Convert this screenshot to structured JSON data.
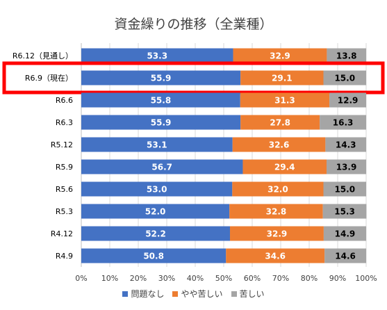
{
  "chart_data": {
    "type": "bar",
    "orientation": "horizontal",
    "stacked": true,
    "title": "資金繰りの推移（全業種）",
    "categories": [
      "R6.12（見通し）",
      "R6.9（現在）",
      "R6.6",
      "R6.3",
      "R5.12",
      "R5.9",
      "R5.6",
      "R5.3",
      "R4.12",
      "R4.9"
    ],
    "series": [
      {
        "name": "問題なし",
        "color": "#4472C4",
        "values": [
          53.3,
          55.9,
          55.8,
          55.9,
          53.1,
          56.7,
          53.0,
          52.0,
          52.2,
          50.8
        ]
      },
      {
        "name": "やや苦しい",
        "color": "#ED7D31",
        "values": [
          32.9,
          29.1,
          31.3,
          27.8,
          32.6,
          29.4,
          32.0,
          32.8,
          32.9,
          34.6
        ]
      },
      {
        "name": "苦しい",
        "color": "#A5A5A5",
        "values": [
          13.8,
          15.0,
          12.9,
          16.3,
          14.3,
          13.9,
          15.0,
          15.3,
          14.9,
          14.6
        ]
      }
    ],
    "xlim": [
      0,
      100
    ],
    "x_ticks": [
      "0%",
      "10%",
      "20%",
      "30%",
      "40%",
      "50%",
      "60%",
      "70%",
      "80%",
      "90%",
      "100%"
    ],
    "legend_position": "bottom",
    "highlight_category": "R6.9（現在）",
    "highlight_color": "#FF0000"
  }
}
